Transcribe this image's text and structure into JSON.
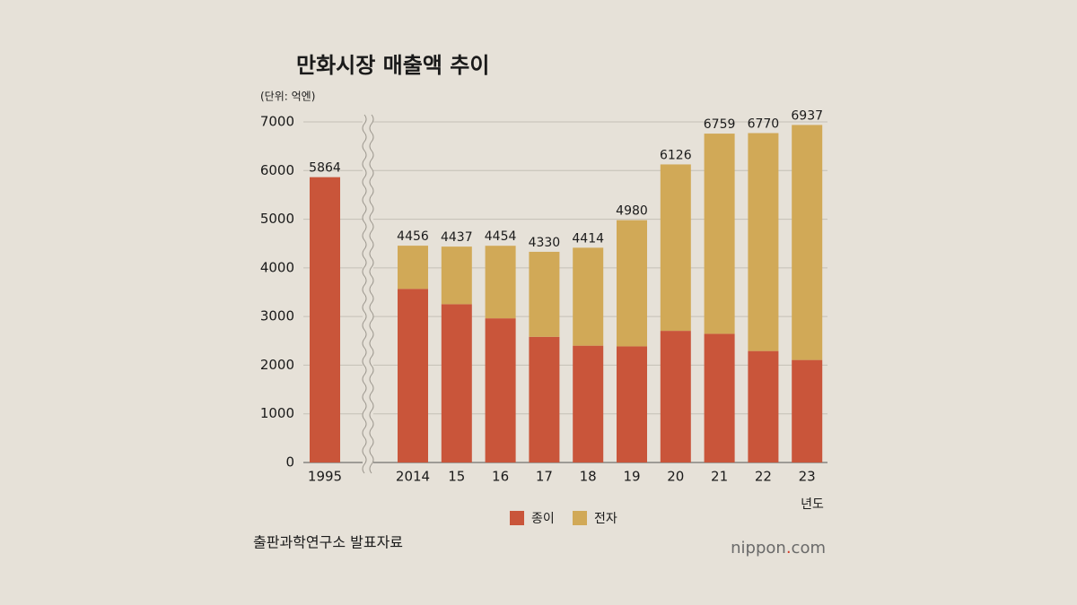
{
  "chart_data": {
    "type": "stacked_bar",
    "title": "만화시장 매출액 추이",
    "unit_label": "(단위: 억엔)",
    "x_label": "년도",
    "source": "출판과학연구소 발표자료",
    "logo": [
      "nippon",
      ".",
      "com"
    ],
    "categories": [
      "1995",
      "2014",
      "15",
      "16",
      "17",
      "18",
      "19",
      "20",
      "21",
      "22",
      "23"
    ],
    "series": [
      {
        "name": "종이",
        "color": "#c9553a",
        "values": [
          5864,
          3569,
          3254,
          2963,
          2583,
          2401,
          2387,
          2706,
          2645,
          2291,
          2107
        ]
      },
      {
        "name": "전자",
        "color": "#d1a957",
        "values": [
          null,
          887,
          1183,
          1491,
          1747,
          2013,
          2593,
          3420,
          4114,
          4479,
          4830
        ]
      }
    ],
    "totals": [
      5864,
      4456,
      4437,
      4454,
      4330,
      4414,
      4980,
      6126,
      6759,
      6770,
      6937
    ],
    "ylim": [
      0,
      7000
    ],
    "yticks": [
      0,
      1000,
      2000,
      3000,
      4000,
      5000,
      6000,
      7000
    ],
    "grid": true
  }
}
